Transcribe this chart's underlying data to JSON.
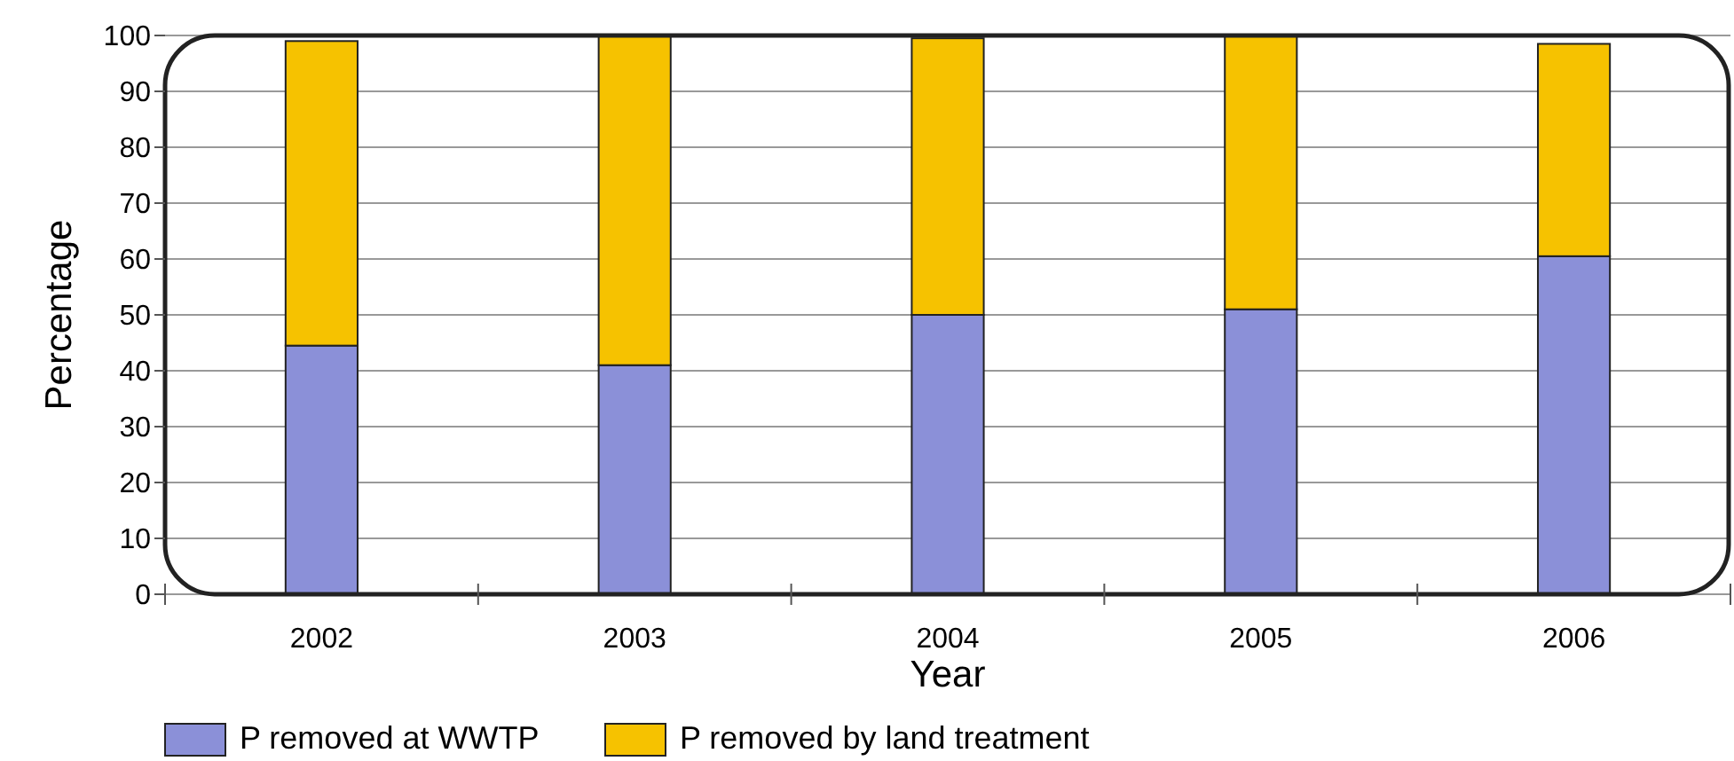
{
  "chart_data": {
    "type": "bar",
    "stacked": true,
    "xlabel": "Year",
    "ylabel": "Percentage",
    "categories": [
      "2002",
      "2003",
      "2004",
      "2005",
      "2006"
    ],
    "series": [
      {
        "name": "P removed at WWTP",
        "color": "#8b90d8",
        "values": [
          44.5,
          41,
          50,
          51,
          60.5
        ]
      },
      {
        "name": "P removed by land treatment",
        "color": "#f6c200",
        "values": [
          54.5,
          59,
          49.5,
          49,
          38
        ]
      }
    ],
    "ylim": [
      0,
      100
    ],
    "yticks": [
      0,
      10,
      20,
      30,
      40,
      50,
      60,
      70,
      80,
      90,
      100
    ],
    "grid": "y",
    "legend": "bottom left"
  }
}
